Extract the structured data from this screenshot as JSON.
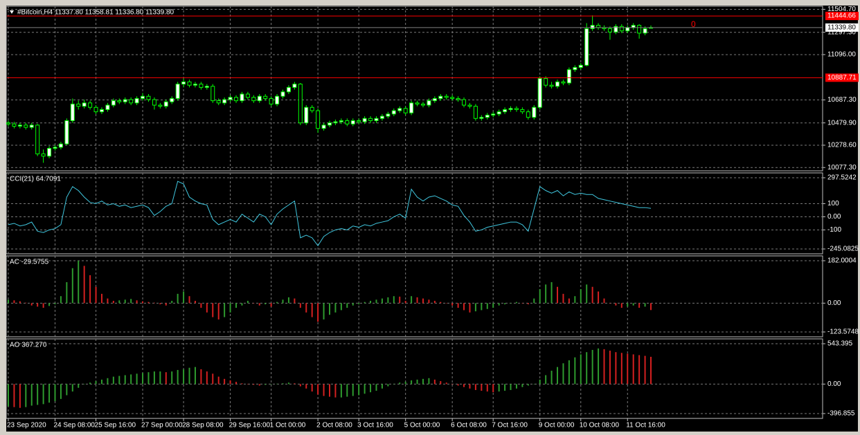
{
  "chart_data": [
    {
      "type": "candlestick",
      "header": "#Bitcoin,H4  11337.80 11358.81 11336.80 11339.80",
      "marker_text": "0",
      "up_color": "#00ff00",
      "bull_fill": "#ffffff",
      "bear_fill": "#000000",
      "grid": true,
      "categories": [
        "23 Sep 2020",
        null,
        null,
        null,
        null,
        null,
        null,
        null,
        "24 Sep 08:00",
        null,
        null,
        null,
        null,
        null,
        null,
        "25 Sep 16:00",
        null,
        null,
        null,
        null,
        null,
        null,
        null,
        "27 Sep 00:00",
        null,
        null,
        null,
        null,
        null,
        null,
        "28 Sep 08:00",
        null,
        null,
        null,
        null,
        null,
        null,
        null,
        "29 Sep 16:00",
        null,
        null,
        null,
        null,
        null,
        null,
        "1 Oct 00:00",
        null,
        null,
        null,
        null,
        null,
        null,
        null,
        "2 Oct 08:00",
        null,
        null,
        null,
        null,
        null,
        null,
        "3 Oct 16:00",
        null,
        null,
        null,
        null,
        null,
        null,
        null,
        "5 Oct 00:00",
        null,
        null,
        null,
        null,
        null,
        null,
        null,
        "6 Oct 08:00",
        null,
        null,
        null,
        null,
        null,
        null,
        "7 Oct 16:00",
        null,
        null,
        null,
        null,
        null,
        null,
        null,
        "9 Oct 00:00",
        null,
        null,
        null,
        null,
        null,
        null,
        "10 Oct 08:00",
        null,
        null,
        null,
        null,
        null,
        null,
        null,
        "11 Oct 16:00",
        null,
        null,
        null,
        null
      ],
      "ohlc": [
        [
          10480,
          10500,
          10450,
          10470
        ],
        [
          10470,
          10490,
          10430,
          10450
        ],
        [
          10450,
          10480,
          10430,
          10460
        ],
        [
          10460,
          10480,
          10420,
          10440
        ],
        [
          10440,
          10480,
          10420,
          10460
        ],
        [
          10460,
          10470,
          10180,
          10200
        ],
        [
          10200,
          10240,
          10120,
          10180
        ],
        [
          10180,
          10270,
          10160,
          10250
        ],
        [
          10250,
          10280,
          10230,
          10260
        ],
        [
          10260,
          10310,
          10240,
          10290
        ],
        [
          10290,
          10520,
          10280,
          10500
        ],
        [
          10500,
          10700,
          10480,
          10650
        ],
        [
          10650,
          10680,
          10600,
          10630
        ],
        [
          10630,
          10690,
          10610,
          10660
        ],
        [
          10660,
          10680,
          10600,
          10620
        ],
        [
          10620,
          10640,
          10560,
          10580
        ],
        [
          10580,
          10620,
          10560,
          10600
        ],
        [
          10600,
          10660,
          10580,
          10640
        ],
        [
          10640,
          10700,
          10620,
          10680
        ],
        [
          10680,
          10700,
          10650,
          10670
        ],
        [
          10670,
          10710,
          10650,
          10690
        ],
        [
          10690,
          10710,
          10640,
          10660
        ],
        [
          10660,
          10720,
          10640,
          10700
        ],
        [
          10700,
          10750,
          10680,
          10720
        ],
        [
          10720,
          10740,
          10670,
          10690
        ],
        [
          10690,
          10710,
          10600,
          10640
        ],
        [
          10640,
          10660,
          10610,
          10630
        ],
        [
          10630,
          10690,
          10610,
          10670
        ],
        [
          10670,
          10720,
          10650,
          10700
        ],
        [
          10700,
          10850,
          10680,
          10830
        ],
        [
          10830,
          10880,
          10800,
          10850
        ],
        [
          10850,
          10870,
          10800,
          10820
        ],
        [
          10820,
          10850,
          10800,
          10830
        ],
        [
          10830,
          10850,
          10780,
          10800
        ],
        [
          10800,
          10830,
          10780,
          10810
        ],
        [
          10810,
          10830,
          10660,
          10680
        ],
        [
          10680,
          10700,
          10640,
          10660
        ],
        [
          10660,
          10710,
          10640,
          10690
        ],
        [
          10690,
          10730,
          10670,
          10710
        ],
        [
          10710,
          10730,
          10660,
          10680
        ],
        [
          10680,
          10760,
          10660,
          10740
        ],
        [
          10740,
          10760,
          10690,
          10710
        ],
        [
          10710,
          10730,
          10660,
          10680
        ],
        [
          10680,
          10740,
          10660,
          10720
        ],
        [
          10720,
          10740,
          10680,
          10700
        ],
        [
          10700,
          10720,
          10630,
          10650
        ],
        [
          10650,
          10740,
          10630,
          10720
        ],
        [
          10720,
          10780,
          10700,
          10760
        ],
        [
          10760,
          10820,
          10740,
          10800
        ],
        [
          10800,
          10850,
          10780,
          10830
        ],
        [
          10830,
          10840,
          10460,
          10480
        ],
        [
          10480,
          10640,
          10460,
          10620
        ],
        [
          10620,
          10640,
          10570,
          10590
        ],
        [
          10590,
          10610,
          10390,
          10430
        ],
        [
          10430,
          10480,
          10410,
          10460
        ],
        [
          10460,
          10500,
          10440,
          10480
        ],
        [
          10480,
          10510,
          10460,
          10490
        ],
        [
          10490,
          10520,
          10470,
          10500
        ],
        [
          10500,
          10520,
          10450,
          10470
        ],
        [
          10470,
          10520,
          10450,
          10500
        ],
        [
          10500,
          10520,
          10470,
          10490
        ],
        [
          10490,
          10540,
          10470,
          10520
        ],
        [
          10520,
          10540,
          10480,
          10500
        ],
        [
          10500,
          10540,
          10480,
          10520
        ],
        [
          10520,
          10560,
          10500,
          10540
        ],
        [
          10540,
          10580,
          10520,
          10560
        ],
        [
          10560,
          10610,
          10540,
          10590
        ],
        [
          10590,
          10630,
          10570,
          10610
        ],
        [
          10610,
          10630,
          10550,
          10570
        ],
        [
          10570,
          10680,
          10550,
          10660
        ],
        [
          10660,
          10680,
          10630,
          10650
        ],
        [
          10650,
          10670,
          10620,
          10640
        ],
        [
          10640,
          10700,
          10620,
          10680
        ],
        [
          10680,
          10720,
          10660,
          10700
        ],
        [
          10700,
          10740,
          10680,
          10720
        ],
        [
          10720,
          10740,
          10690,
          10710
        ],
        [
          10710,
          10730,
          10680,
          10700
        ],
        [
          10700,
          10720,
          10670,
          10690
        ],
        [
          10690,
          10710,
          10620,
          10640
        ],
        [
          10640,
          10660,
          10610,
          10630
        ],
        [
          10630,
          10650,
          10500,
          10520
        ],
        [
          10520,
          10550,
          10500,
          10530
        ],
        [
          10530,
          10570,
          10510,
          10550
        ],
        [
          10550,
          10580,
          10530,
          10560
        ],
        [
          10560,
          10600,
          10540,
          10580
        ],
        [
          10580,
          10620,
          10560,
          10600
        ],
        [
          10600,
          10630,
          10580,
          10610
        ],
        [
          10610,
          10630,
          10580,
          10600
        ],
        [
          10600,
          10620,
          10560,
          10580
        ],
        [
          10580,
          10600,
          10510,
          10530
        ],
        [
          10530,
          10640,
          10510,
          10620
        ],
        [
          10620,
          10900,
          10600,
          10880
        ],
        [
          10880,
          10900,
          10800,
          10820
        ],
        [
          10820,
          10850,
          10790,
          10810
        ],
        [
          10810,
          10870,
          10790,
          10850
        ],
        [
          10850,
          10870,
          10820,
          10840
        ],
        [
          10840,
          10980,
          10820,
          10960
        ],
        [
          10960,
          11000,
          10940,
          10980
        ],
        [
          10980,
          11020,
          10960,
          11000
        ],
        [
          11000,
          11380,
          10990,
          11330
        ],
        [
          11330,
          11450,
          11310,
          11360
        ],
        [
          11360,
          11380,
          11320,
          11340
        ],
        [
          11340,
          11360,
          11310,
          11330
        ],
        [
          11330,
          11350,
          11230,
          11300
        ],
        [
          11300,
          11370,
          11280,
          11350
        ],
        [
          11350,
          11370,
          11290,
          11310
        ],
        [
          11310,
          11360,
          11290,
          11340
        ],
        [
          11340,
          11380,
          11320,
          11360
        ],
        [
          11360,
          11370,
          11240,
          11290
        ],
        [
          11290,
          11350,
          11270,
          11330
        ],
        [
          11337.8,
          11358.81,
          11336.8,
          11339.8
        ]
      ],
      "ylim": [
        10060,
        11520
      ],
      "yticks": [
        {
          "value": 11504.7,
          "label": "11504.70"
        },
        {
          "value": 11297.3,
          "label": "11297.30"
        },
        {
          "value": 11096,
          "label": "11096.00"
        },
        {
          "value": 10687.3,
          "label": "10687.30"
        },
        {
          "value": 10479.9,
          "label": "10479.90"
        },
        {
          "value": 10278.6,
          "label": "10278.60"
        },
        {
          "value": 10077.3,
          "label": "10077.30"
        }
      ],
      "levels": [
        {
          "value": 11444.66,
          "label": "11444.66"
        },
        {
          "value": 10887.71,
          "label": "10887.71"
        }
      ],
      "level_color": "#ff0000",
      "last_price": {
        "value": 11339.8,
        "label": "11339.80"
      }
    },
    {
      "type": "line",
      "title": "CCI(21) 64.7091",
      "color": "#40c8e0",
      "values": [
        -60,
        -50,
        -70,
        -60,
        -40,
        -110,
        -120,
        -100,
        -90,
        -60,
        150,
        230,
        200,
        150,
        110,
        100,
        120,
        90,
        100,
        80,
        90,
        70,
        80,
        90,
        70,
        10,
        40,
        80,
        100,
        270,
        250,
        150,
        120,
        100,
        90,
        -20,
        -60,
        -40,
        -20,
        -40,
        20,
        -10,
        -40,
        20,
        0,
        -60,
        20,
        60,
        90,
        120,
        -160,
        -140,
        -160,
        -220,
        -150,
        -120,
        -100,
        -90,
        -100,
        -70,
        -80,
        -60,
        -70,
        -50,
        -40,
        -30,
        0,
        20,
        -10,
        210,
        150,
        120,
        150,
        160,
        140,
        120,
        90,
        80,
        10,
        -40,
        -110,
        -100,
        -80,
        -70,
        -60,
        -50,
        -40,
        -40,
        -60,
        -110,
        60,
        230,
        200,
        180,
        200,
        160,
        190,
        170,
        180,
        170,
        170,
        140,
        130,
        120,
        110,
        100,
        90,
        80,
        70,
        70,
        64.7091
      ],
      "ylim": [
        -245.0825,
        297.5242
      ],
      "yticks": [
        297.5242,
        100,
        {
          "value": 0,
          "label": "0.00"
        },
        -100,
        -245.0825
      ]
    },
    {
      "type": "bar",
      "title": "AC -29.5755",
      "up_color": "#2e9b2e",
      "down_color": "#d42020",
      "values": [
        15,
        12,
        8,
        2,
        -10,
        -15,
        -20,
        -12,
        -5,
        30,
        90,
        150,
        182,
        160,
        120,
        70,
        40,
        20,
        10,
        12,
        15,
        18,
        12,
        8,
        5,
        2,
        -5,
        -10,
        10,
        40,
        50,
        30,
        10,
        -20,
        -40,
        -60,
        -70,
        -60,
        -40,
        -20,
        -10,
        10,
        0,
        -10,
        -5,
        -15,
        5,
        15,
        25,
        20,
        -20,
        -40,
        -60,
        -80,
        -70,
        -50,
        -40,
        -30,
        -20,
        -10,
        -5,
        5,
        10,
        15,
        20,
        25,
        30,
        28,
        10,
        30,
        25,
        20,
        15,
        10,
        5,
        0,
        -10,
        -20,
        -30,
        -40,
        -35,
        -30,
        -25,
        -20,
        -10,
        -5,
        0,
        5,
        0,
        -5,
        20,
        60,
        80,
        90,
        70,
        40,
        20,
        30,
        60,
        80,
        70,
        50,
        20,
        0,
        -10,
        -20,
        -15,
        -10,
        -20,
        -15,
        -29.5755
      ],
      "ylim": [
        -123.5748,
        182.0004
      ],
      "yticks": [
        182.0004,
        {
          "value": 0,
          "label": "0.00"
        },
        -123.5748
      ]
    },
    {
      "type": "bar",
      "title": "AO 367.270",
      "up_color": "#2e9b2e",
      "down_color": "#d42020",
      "values": [
        -300,
        -310,
        -320,
        -310,
        -290,
        -280,
        -270,
        -250,
        -230,
        -200,
        -150,
        -100,
        -50,
        0,
        20,
        40,
        60,
        80,
        100,
        110,
        120,
        130,
        140,
        150,
        160,
        170,
        170,
        160,
        170,
        190,
        200,
        220,
        230,
        200,
        170,
        140,
        100,
        70,
        50,
        30,
        10,
        0,
        -10,
        -20,
        -10,
        0,
        5,
        10,
        20,
        10,
        -30,
        -60,
        -100,
        -140,
        -160,
        -170,
        -180,
        -180,
        -170,
        -160,
        -150,
        -130,
        -110,
        -90,
        -60,
        -30,
        0,
        20,
        30,
        50,
        60,
        70,
        80,
        60,
        40,
        20,
        0,
        -20,
        -40,
        -60,
        -80,
        -90,
        -100,
        -110,
        -100,
        -90,
        -80,
        -60,
        -40,
        -20,
        0,
        60,
        120,
        180,
        230,
        280,
        320,
        360,
        400,
        430,
        460,
        480,
        470,
        450,
        430,
        420,
        410,
        400,
        390,
        380,
        367.27
      ],
      "ylim": [
        -396.855,
        543.395
      ],
      "yticks": [
        543.395,
        {
          "value": 0,
          "label": "0.00"
        },
        -396.855
      ]
    }
  ]
}
